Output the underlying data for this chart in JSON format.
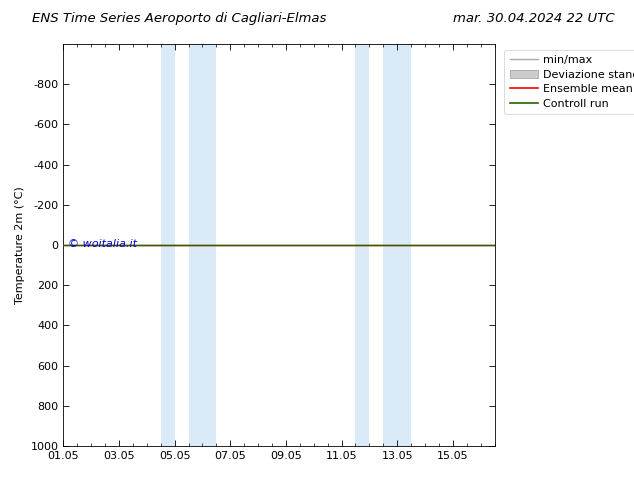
{
  "title_left": "ENS Time Series Aeroporto di Cagliari-Elmas",
  "title_right": "mar. 30.04.2024 22 UTC",
  "ylabel": "Temperature 2m (°C)",
  "watermark": "© woitalia.it",
  "ylim_bottom": 1000,
  "ylim_top": -1000,
  "yticks": [
    -800,
    -600,
    -400,
    -200,
    0,
    200,
    400,
    600,
    800,
    1000
  ],
  "xtick_labels": [
    "01.05",
    "03.05",
    "05.05",
    "07.05",
    "09.05",
    "11.05",
    "13.05",
    "15.05"
  ],
  "xtick_positions": [
    0,
    2,
    4,
    6,
    8,
    10,
    12,
    14
  ],
  "x_min": 0,
  "x_max": 15.5,
  "background_color": "#ffffff",
  "plot_bg_color": "#ffffff",
  "shade_bands": [
    {
      "x_start": 3.5,
      "x_end": 4.0,
      "color": "#daeaf7"
    },
    {
      "x_start": 4.5,
      "x_end": 5.5,
      "color": "#daeaf7"
    },
    {
      "x_start": 10.5,
      "x_end": 11.0,
      "color": "#daeaf7"
    },
    {
      "x_start": 11.5,
      "x_end": 12.5,
      "color": "#daeaf7"
    }
  ],
  "ensemble_mean_color": "#ff0000",
  "control_run_color": "#226600",
  "min_max_color": "#aaaaaa",
  "std_fill_color": "#cccccc",
  "line_y_value": 0,
  "title_fontsize": 9.5,
  "axis_fontsize": 8,
  "legend_fontsize": 8,
  "watermark_color": "#0000cc",
  "watermark_fontsize": 8
}
